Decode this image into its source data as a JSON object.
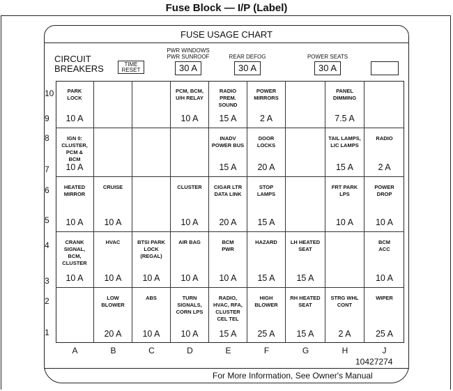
{
  "title": "Fuse Block — I/P (Label)",
  "chart_title": "FUSE USAGE CHART",
  "circuit_breakers": {
    "label_line1": "CIRCUIT",
    "label_line2": "BREAKERS",
    "time_reset_line1": "TIME",
    "time_reset_line2": "RESET",
    "items": [
      {
        "caption_line1": "PWR WINDOWS",
        "caption_line2": "PWR SUNROOF",
        "value": "30 A"
      },
      {
        "caption_line1": "",
        "caption_line2": "REAR DEFOG",
        "value": "30 A"
      },
      {
        "caption_line1": "",
        "caption_line2": "POWER SEATS",
        "value": "30 A"
      },
      {
        "caption_line1": "",
        "caption_line2": "",
        "value": ""
      }
    ]
  },
  "row_numbers": [
    "10",
    "9",
    "8",
    "7",
    "6",
    "5",
    "4",
    "3",
    "2",
    "1"
  ],
  "columns": [
    "A",
    "B",
    "C",
    "D",
    "E",
    "F",
    "G",
    "H",
    "J"
  ],
  "rows": [
    [
      {
        "label": "PARK\nLOCK",
        "amp": "10 A"
      },
      {
        "label": "",
        "amp": ""
      },
      {
        "label": "",
        "amp": ""
      },
      {
        "label": "PCM, BCM,\nU/H RELAY",
        "amp": "10 A"
      },
      {
        "label": "RADIO\nPREM.\nSOUND",
        "amp": "15 A"
      },
      {
        "label": "POWER\nMIRRORS",
        "amp": "2 A"
      },
      {
        "label": "",
        "amp": ""
      },
      {
        "label": "PANEL\nDIMMING",
        "amp": "7.5 A"
      },
      {
        "label": "",
        "amp": ""
      }
    ],
    [
      {
        "label": "IGN 0:\nCLUSTER,\nPCM &\nBCM",
        "amp": "10 A"
      },
      {
        "label": "",
        "amp": ""
      },
      {
        "label": "",
        "amp": ""
      },
      {
        "label": "",
        "amp": ""
      },
      {
        "label": "INADV\nPOWER BUS",
        "amp": "15 A"
      },
      {
        "label": "DOOR\nLOCKS",
        "amp": "20 A"
      },
      {
        "label": "",
        "amp": ""
      },
      {
        "label": "TAIL LAMPS,\nLIC LAMPS",
        "amp": "15 A"
      },
      {
        "label": "RADIO",
        "amp": "2 A"
      }
    ],
    [
      {
        "label": "HEATED\nMIRROR",
        "amp": "10 A"
      },
      {
        "label": "CRUISE",
        "amp": "10 A"
      },
      {
        "label": "",
        "amp": ""
      },
      {
        "label": "CLUSTER",
        "amp": "10 A"
      },
      {
        "label": "CIGAR LTR\nDATA LINK",
        "amp": "20 A"
      },
      {
        "label": "STOP\nLAMPS",
        "amp": "15 A"
      },
      {
        "label": "",
        "amp": ""
      },
      {
        "label": "FRT PARK\nLPS",
        "amp": "10 A"
      },
      {
        "label": "POWER\nDROP",
        "amp": "10 A"
      }
    ],
    [
      {
        "label": "CRANK\nSIGNAL,\nBCM,\nCLUSTER",
        "amp": "10 A"
      },
      {
        "label": "HVAC",
        "amp": "10 A"
      },
      {
        "label": "BTSI PARK\nLOCK\n(REGAL)",
        "amp": "10 A"
      },
      {
        "label": "AIR BAG",
        "amp": "10 A"
      },
      {
        "label": "BCM\nPWR",
        "amp": "10 A"
      },
      {
        "label": "HAZARD",
        "amp": "15 A"
      },
      {
        "label": "LH HEATED\nSEAT",
        "amp": "15 A"
      },
      {
        "label": "",
        "amp": ""
      },
      {
        "label": "BCM\nACC",
        "amp": "10 A"
      }
    ],
    [
      {
        "label": "",
        "amp": ""
      },
      {
        "label": "LOW\nBLOWER",
        "amp": "20 A"
      },
      {
        "label": "ABS",
        "amp": "10 A"
      },
      {
        "label": "TURN\nSIGNALS,\nCORN LPS",
        "amp": "10 A"
      },
      {
        "label": "RADIO,\nHVAC, RFA,\nCLUSTER\nCEL TEL",
        "amp": "15 A"
      },
      {
        "label": "HIGH\nBLOWER",
        "amp": "25 A"
      },
      {
        "label": "RH HEATED\nSEAT",
        "amp": "15 A"
      },
      {
        "label": "STRG WHL\nCONT",
        "amp": "2 A"
      },
      {
        "label": "WIPER",
        "amp": "25 A"
      }
    ]
  ],
  "part_number": "10427274",
  "footer": "For More Information, See Owner's Manual"
}
